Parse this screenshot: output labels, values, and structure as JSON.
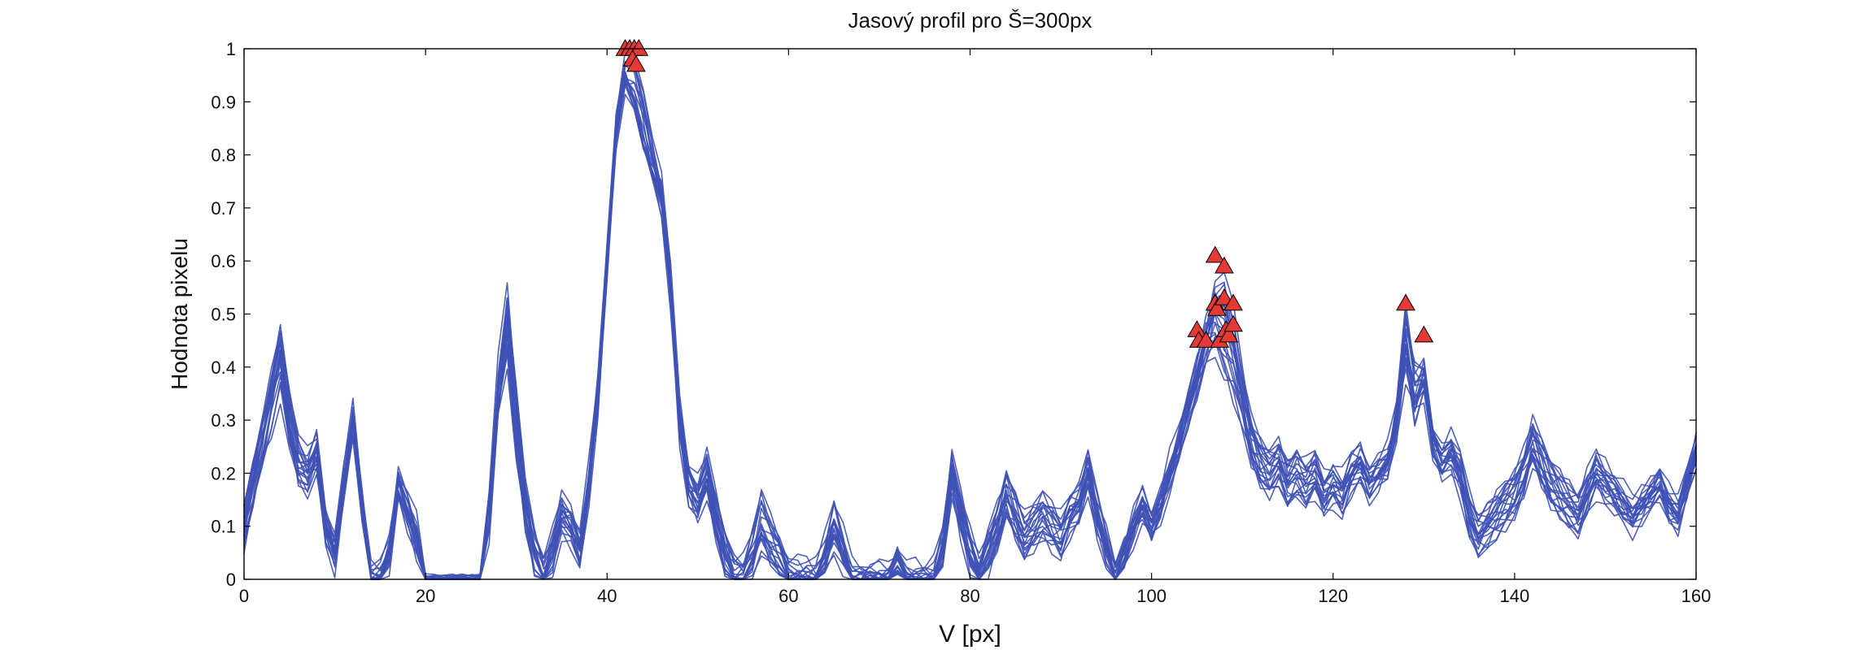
{
  "chart_data": {
    "type": "line",
    "title": "Jasový profil pro Š=300px",
    "xlabel": "V [px]",
    "ylabel": "Hodnota pixelu",
    "xlim": [
      0,
      160
    ],
    "ylim": [
      0,
      1
    ],
    "x_ticks": [
      0,
      20,
      40,
      60,
      80,
      100,
      120,
      140,
      160
    ],
    "y_ticks": [
      0,
      0.1,
      0.2,
      0.3,
      0.4,
      0.5,
      0.6,
      0.7,
      0.8,
      0.9,
      1
    ],
    "grid": false,
    "legend": "none",
    "line_color": "#3F51B5",
    "marker_color": "#E53935",
    "marker_shape": "triangle",
    "num_profiles": 20,
    "representative_profile": {
      "x": [
        0,
        1,
        2,
        3,
        4,
        5,
        6,
        7,
        8,
        9,
        10,
        11,
        12,
        13,
        14,
        15,
        16,
        17,
        18,
        19,
        20,
        21,
        22,
        23,
        24,
        25,
        26,
        27,
        28,
        29,
        30,
        31,
        32,
        33,
        34,
        35,
        36,
        37,
        38,
        39,
        40,
        41,
        42,
        43,
        44,
        45,
        46,
        47,
        48,
        49,
        50,
        51,
        52,
        53,
        54,
        55,
        56,
        57,
        58,
        59,
        60,
        61,
        62,
        63,
        64,
        65,
        66,
        67,
        68,
        69,
        70,
        71,
        72,
        73,
        74,
        75,
        76,
        77,
        78,
        79,
        80,
        81,
        82,
        83,
        84,
        85,
        86,
        87,
        88,
        89,
        90,
        91,
        92,
        93,
        94,
        95,
        96,
        97,
        98,
        99,
        100,
        101,
        102,
        103,
        104,
        105,
        106,
        107,
        108,
        109,
        110,
        111,
        112,
        113,
        114,
        115,
        116,
        117,
        118,
        119,
        120,
        121,
        122,
        123,
        124,
        125,
        126,
        127,
        128,
        129,
        130,
        131,
        132,
        133,
        134,
        135,
        136,
        137,
        138,
        139,
        140,
        141,
        142,
        143,
        144,
        145,
        146,
        147,
        148,
        149,
        150,
        151,
        152,
        153,
        154,
        155,
        156,
        157,
        158,
        159,
        160
      ],
      "y": [
        0.1,
        0.18,
        0.26,
        0.34,
        0.42,
        0.3,
        0.22,
        0.2,
        0.24,
        0.1,
        0.05,
        0.18,
        0.3,
        0.14,
        0.0,
        0.0,
        0.05,
        0.18,
        0.13,
        0.08,
        0.0,
        0.0,
        0.0,
        0.0,
        0.0,
        0.0,
        0.0,
        0.12,
        0.35,
        0.48,
        0.3,
        0.14,
        0.05,
        0.0,
        0.05,
        0.12,
        0.1,
        0.05,
        0.18,
        0.35,
        0.6,
        0.85,
        0.95,
        0.92,
        0.85,
        0.78,
        0.72,
        0.55,
        0.3,
        0.18,
        0.15,
        0.2,
        0.12,
        0.05,
        0.0,
        0.0,
        0.05,
        0.12,
        0.08,
        0.05,
        0.0,
        0.0,
        0.0,
        0.0,
        0.05,
        0.12,
        0.06,
        0.0,
        0.0,
        0.0,
        0.0,
        0.0,
        0.04,
        0.0,
        0.0,
        0.0,
        0.0,
        0.06,
        0.2,
        0.12,
        0.05,
        0.0,
        0.05,
        0.1,
        0.16,
        0.12,
        0.08,
        0.1,
        0.12,
        0.1,
        0.08,
        0.12,
        0.14,
        0.2,
        0.12,
        0.06,
        0.0,
        0.05,
        0.1,
        0.14,
        0.1,
        0.14,
        0.2,
        0.25,
        0.32,
        0.38,
        0.45,
        0.5,
        0.48,
        0.42,
        0.34,
        0.26,
        0.22,
        0.2,
        0.22,
        0.18,
        0.2,
        0.18,
        0.2,
        0.16,
        0.18,
        0.16,
        0.2,
        0.22,
        0.18,
        0.2,
        0.22,
        0.3,
        0.45,
        0.35,
        0.38,
        0.26,
        0.22,
        0.24,
        0.2,
        0.12,
        0.08,
        0.1,
        0.12,
        0.14,
        0.16,
        0.2,
        0.26,
        0.22,
        0.18,
        0.16,
        0.14,
        0.12,
        0.16,
        0.2,
        0.18,
        0.16,
        0.14,
        0.12,
        0.14,
        0.16,
        0.18,
        0.14,
        0.12,
        0.18,
        0.24
      ]
    },
    "peak_markers": [
      {
        "x": 42,
        "y": 1.0
      },
      {
        "x": 42.5,
        "y": 1.0
      },
      {
        "x": 43,
        "y": 1.0
      },
      {
        "x": 43.5,
        "y": 1.0
      },
      {
        "x": 42.8,
        "y": 0.98
      },
      {
        "x": 43.2,
        "y": 0.97
      },
      {
        "x": 105,
        "y": 0.47
      },
      {
        "x": 105.2,
        "y": 0.45
      },
      {
        "x": 106,
        "y": 0.45
      },
      {
        "x": 107,
        "y": 0.61
      },
      {
        "x": 107,
        "y": 0.52
      },
      {
        "x": 107.2,
        "y": 0.51
      },
      {
        "x": 107.5,
        "y": 0.45
      },
      {
        "x": 108,
        "y": 0.59
      },
      {
        "x": 108,
        "y": 0.53
      },
      {
        "x": 108.2,
        "y": 0.47
      },
      {
        "x": 108.5,
        "y": 0.46
      },
      {
        "x": 109,
        "y": 0.48
      },
      {
        "x": 109,
        "y": 0.52
      },
      {
        "x": 128,
        "y": 0.52
      },
      {
        "x": 130,
        "y": 0.46
      }
    ]
  }
}
